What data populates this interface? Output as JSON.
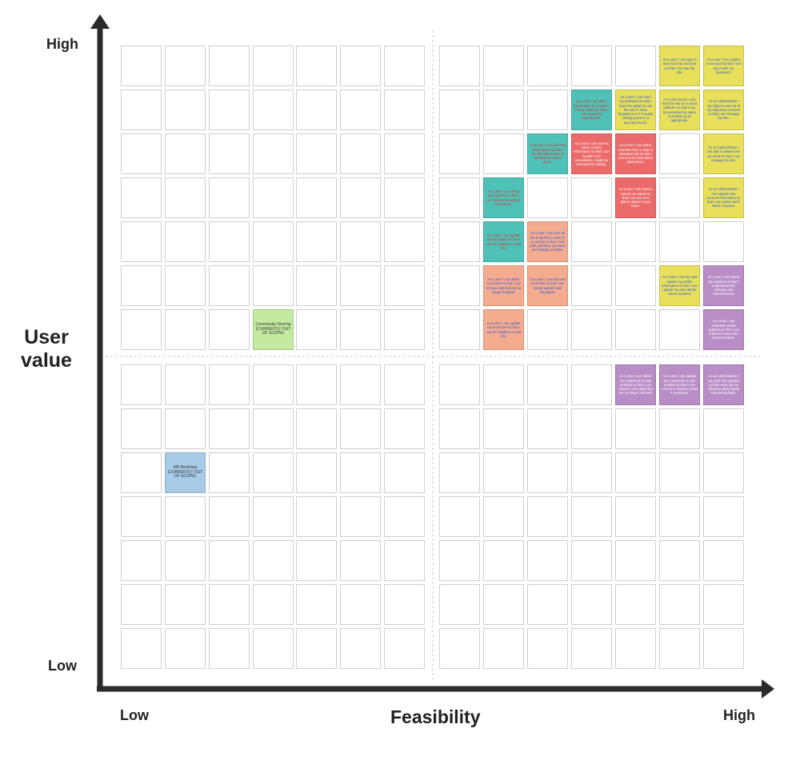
{
  "axes": {
    "y_high": "High",
    "y_low": "Low",
    "y_title_line1": "User",
    "y_title_line2": "value",
    "x_low": "Low",
    "x_high": "High",
    "x_title": "Feasibility"
  },
  "colors": {
    "yellow": "#e8e05a",
    "teal": "#4fc2b8",
    "red": "#ec6a6a",
    "salmon": "#f5ab8e",
    "purple": "#b98dc6",
    "green": "#c4eaa0",
    "blue": "#a8cbe8",
    "text_blue": "#2e5cd6",
    "text_red": "#d8332e",
    "text_white": "#ffffff",
    "text_dark": "#333333"
  },
  "notes": [
    {
      "col": 12,
      "row": 0,
      "color": "yellow",
      "text_color": "text_blue",
      "text": "As a user I can login to and out of my account so that I can use the site."
    },
    {
      "col": 13,
      "row": 0,
      "color": "yellow",
      "text_color": "text_blue",
      "text": "As a user I can register an account so that I can log in with my password."
    },
    {
      "col": 10,
      "row": 1,
      "color": "teal",
      "text_color": "text_red",
      "text": "As a user I can add a trip location to a country I have visited so that I can record my experiences."
    },
    {
      "col": 11,
      "row": 1,
      "color": "yellow",
      "text_color": "text_blue",
      "text": "As a user I can reset my password so that I have the option to use the site if I have forgotten it or if it needs changing due to a security breach."
    },
    {
      "col": 12,
      "row": 1,
      "color": "yellow",
      "text_color": "text_blue",
      "text": "As a Site Owner I can host the site on a cloud platform so that it can be accessed by users to scaled up as appropriate."
    },
    {
      "col": 13,
      "row": 1,
      "color": "yellow",
      "text_color": "text_blue",
      "text": "As an Administrator I can login in and out of my superuser account so that I can manage the site."
    },
    {
      "col": 9,
      "row": 2,
      "color": "teal",
      "text_color": "text_red",
      "text": "As a user I can add new destinations so that I can find information to develop my travel plans."
    },
    {
      "col": 10,
      "row": 2,
      "color": "red",
      "text_color": "text_white",
      "text": "As a user I can access basic country information so that I can decide if it is somewhere I might be interested in visiting."
    },
    {
      "col": 11,
      "row": 2,
      "color": "red",
      "text_color": "text_white",
      "text": "As a user I can select countries from a map or dropdown list so that I can access information about them."
    },
    {
      "col": 13,
      "row": 2,
      "color": "yellow",
      "text_color": "text_blue",
      "text": "As an Administrator I can add or delete user accounts so that I can manage the site."
    },
    {
      "col": 8,
      "row": 3,
      "color": "teal",
      "text_color": "text_red",
      "text": "As a user I can delete trip locations so that I can remove unwanted information."
    },
    {
      "col": 11,
      "row": 3,
      "color": "red",
      "text_color": "text_white",
      "text": "As a user I can mark a country as visited so that I can see at a glance where I have been."
    },
    {
      "col": 13,
      "row": 3,
      "color": "yellow",
      "text_color": "text_blue",
      "text": "As an Administrator I can update user account information so that I can assist users where required."
    },
    {
      "col": 8,
      "row": 4,
      "color": "teal",
      "text_color": "text_red",
      "text": "As a user I can update my trip details so that I can fix mistakes or add info."
    },
    {
      "col": 9,
      "row": 4,
      "color": "salmon",
      "text_color": "text_blue",
      "text": "As a user I can view all the to-do lists I have for a country so that I can plan and track my travel and holiday activities."
    },
    {
      "col": 8,
      "row": 5,
      "color": "salmon",
      "text_color": "text_blue",
      "text": "As a user I can delete to-do lists so that I can remove lists that are no longer required."
    },
    {
      "col": 9,
      "row": 5,
      "color": "salmon",
      "text_color": "text_blue",
      "text": "As a user I can add new to-do lists so that I can create specific task managers."
    },
    {
      "col": 12,
      "row": 5,
      "color": "yellow",
      "text_color": "text_blue",
      "text": "As a user I can see and update my profile information so that I can update my user details where required."
    },
    {
      "col": 13,
      "row": 5,
      "color": "purple",
      "text_color": "text_white",
      "text": "As a user I can check site updates so that I understand site changes and improvements."
    },
    {
      "col": 3,
      "row": 6,
      "color": "green",
      "text_color": "text_dark",
      "text": "Community Sharing (CURRENTLY OUT OF SCOPE)",
      "scope": true
    },
    {
      "col": 8,
      "row": 6,
      "color": "salmon",
      "text_color": "text_blue",
      "text": "As a user I can update my to-do lists so that I can fix mistakes or add info."
    },
    {
      "col": 13,
      "row": 6,
      "color": "purple",
      "text_color": "text_white",
      "text": "As a user I can comment on site updates so that I can influence future site enhancements."
    },
    {
      "col": 11,
      "row": 7,
      "color": "purple",
      "text_color": "text_white",
      "text": "As a user I can delete my comments on site updates so that I can remove comments that are no longer relevant."
    },
    {
      "col": 12,
      "row": 7,
      "color": "purple",
      "text_color": "text_white",
      "text": "As a user I can update my comments on site updates so that I can correct or improve posts if necessary."
    },
    {
      "col": 13,
      "row": 7,
      "color": "purple",
      "text_color": "text_white",
      "text": "As an Administrator I can post site updates so that users can be informed about latest features/updates."
    },
    {
      "col": 1,
      "row": 9,
      "color": "blue",
      "text_color": "text_dark",
      "text": "API Bookings (CURRENTLY OUT OF SCOPE)",
      "scope": true
    }
  ]
}
